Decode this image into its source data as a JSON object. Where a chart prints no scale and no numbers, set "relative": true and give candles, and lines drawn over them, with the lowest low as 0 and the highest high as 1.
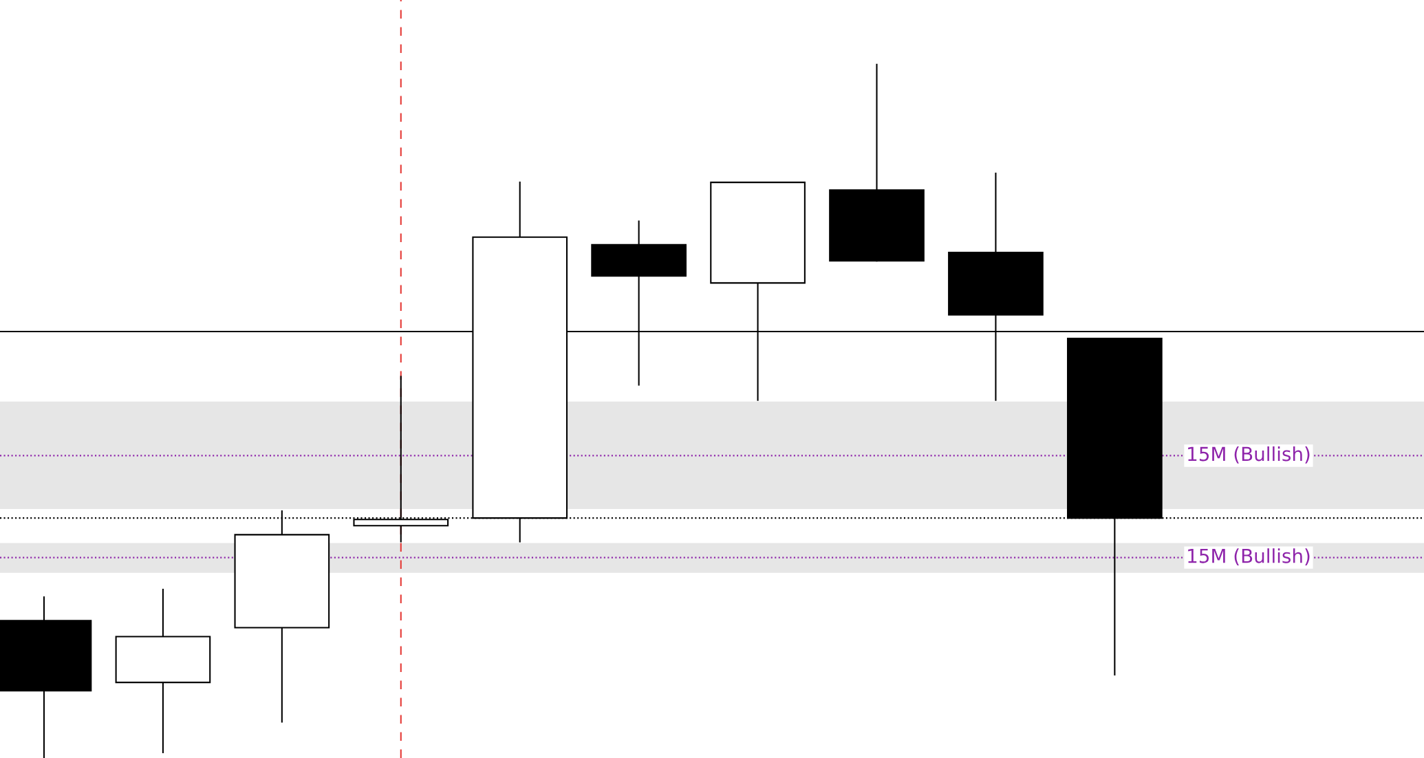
{
  "chart_data": {
    "type": "candlestick",
    "relative": true,
    "categories": [
      null,
      null,
      null,
      null,
      null,
      null,
      null,
      null,
      null,
      null
    ],
    "ohlc": [
      [
        0.198,
        0.232,
        0.0,
        0.097
      ],
      [
        0.109,
        0.243,
        0.008,
        0.175
      ],
      [
        0.188,
        0.356,
        0.052,
        0.322
      ],
      [
        0.335,
        0.55,
        0.312,
        0.344
      ],
      [
        0.346,
        0.83,
        0.312,
        0.751
      ],
      [
        0.74,
        0.774,
        0.538,
        0.695
      ],
      [
        0.685,
        0.83,
        0.516,
        0.83
      ],
      [
        0.819,
        1.0,
        0.717,
        0.717
      ],
      [
        0.729,
        0.843,
        0.516,
        0.639
      ],
      [
        0.605,
        0.605,
        0.12,
        0.346
      ]
    ],
    "bands": [
      {
        "axis": "y",
        "from": 0.359,
        "to": 0.514,
        "color": "#e6e6e6"
      },
      {
        "axis": "y",
        "from": 0.267,
        "to": 0.31,
        "color": "#e6e6e6"
      }
    ],
    "ref_lines": [
      {
        "axis": "y",
        "value": 0.615,
        "color": "#000000",
        "line_style": "solid"
      },
      {
        "axis": "y",
        "value": 0.346,
        "color": "#000000",
        "line_style": "dotted"
      },
      {
        "axis": "y",
        "value": 0.436,
        "label": "15M (Bullish)",
        "color": "#8e24aa",
        "line_style": "dotted"
      },
      {
        "axis": "y",
        "value": 0.289,
        "label": "15M (Bullish)",
        "color": "#8e24aa",
        "line_style": "dotted"
      }
    ]
  }
}
